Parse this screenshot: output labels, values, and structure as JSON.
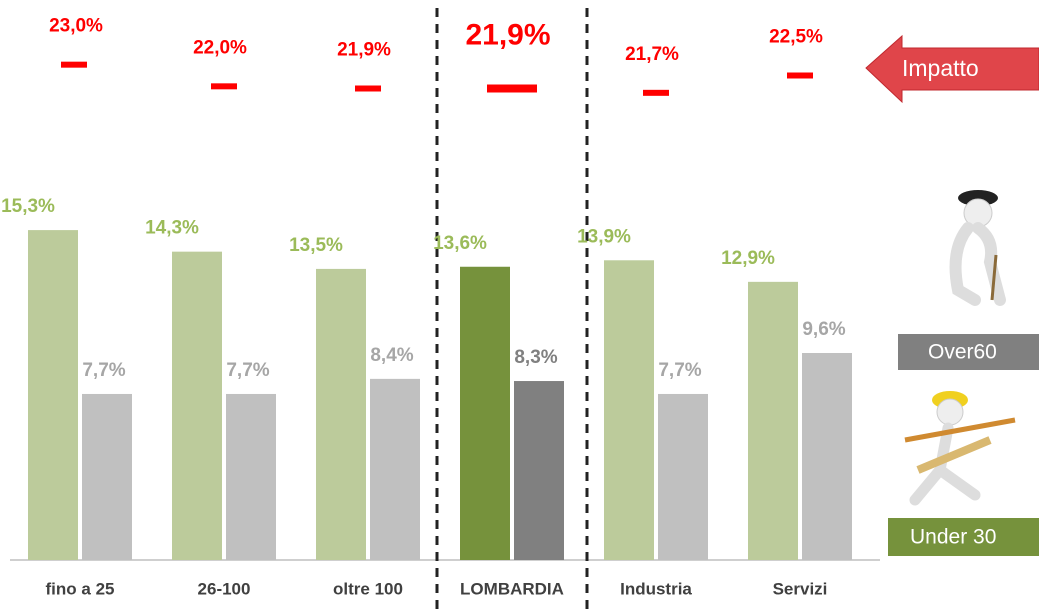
{
  "chart_data": {
    "type": "bar",
    "categories": [
      "fino a 25",
      "26-100",
      "oltre 100",
      "LOMBARDIA",
      "Industria",
      "Servizi"
    ],
    "highlight": "LOMBARDIA",
    "series": [
      {
        "name": "Under 30",
        "color": "#bccb9b",
        "highlight_color": "#76923c",
        "values": [
          15.3,
          14.3,
          13.5,
          13.6,
          13.9,
          12.9
        ],
        "value_labels": [
          "15,3%",
          "14,3%",
          "13,5%",
          "13,6%",
          "13,9%",
          "12,9%"
        ]
      },
      {
        "name": "Over60",
        "color": "#c0c0c0",
        "highlight_color": "#808080",
        "values": [
          7.7,
          7.7,
          8.4,
          8.3,
          7.7,
          9.6
        ],
        "value_labels": [
          "7,7%",
          "7,7%",
          "8,4%",
          "8,3%",
          "7,7%",
          "9,6%"
        ]
      },
      {
        "name": "Impatto",
        "color": "#ff0000",
        "axis": "y2",
        "values": [
          23.0,
          22.0,
          21.9,
          21.9,
          21.7,
          22.5
        ],
        "value_labels": [
          "23,0%",
          "22,0%",
          "21,9%",
          "21,9%",
          "21,7%",
          "22,5%"
        ]
      }
    ],
    "ylim": [
      0,
      16
    ],
    "y2lim": [
      21,
      24
    ]
  }
}
